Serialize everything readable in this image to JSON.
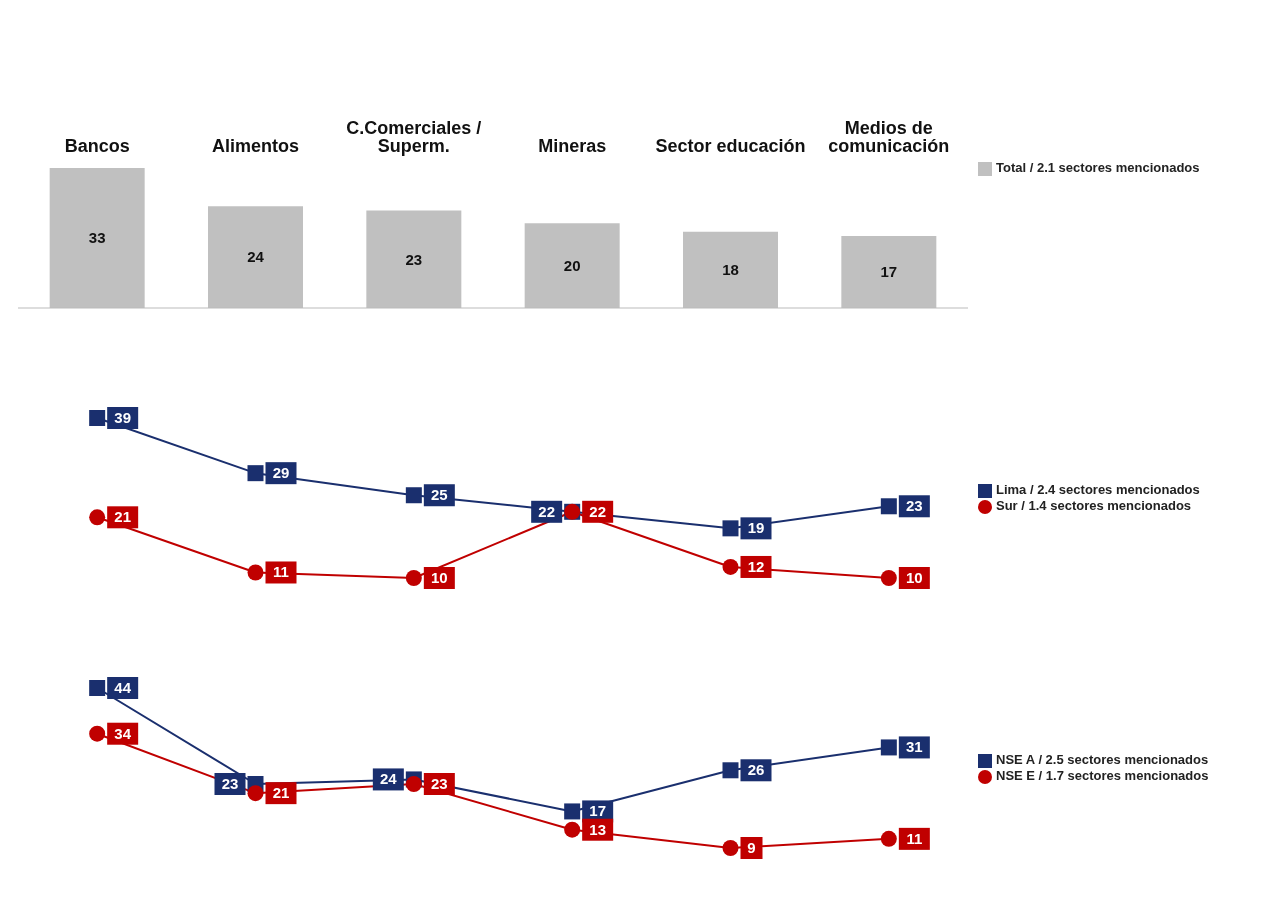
{
  "chart_data": [
    {
      "type": "bar",
      "categories": [
        "Bancos",
        "Alimentos",
        "C.Comerciales / Superm.",
        "Mineras",
        "Sector educación",
        "Medios de comunicación"
      ],
      "data_labels": true,
      "legend": "right",
      "series": [
        {
          "name": "Total / 2.1 sectores mencionados",
          "color": "#c0c0c0",
          "values": [
            33,
            24,
            23,
            20,
            18,
            17
          ]
        }
      ]
    },
    {
      "type": "line",
      "categories": [
        null,
        null,
        null,
        null,
        null,
        null
      ],
      "tick_labels": false,
      "data_labels": true,
      "legend": "right",
      "series": [
        {
          "name": "Lima / 2.4 sectores mencionados",
          "color": "#1a2f6e",
          "marker": "square",
          "values": [
            39,
            29,
            25,
            22,
            19,
            23
          ]
        },
        {
          "name": "Sur / 1.4 sectores mencionados",
          "color": "#c00000",
          "marker": "circle",
          "values": [
            21,
            11,
            10,
            22,
            12,
            10
          ]
        }
      ]
    },
    {
      "type": "line",
      "categories": [
        null,
        null,
        null,
        null,
        null,
        null
      ],
      "tick_labels": false,
      "data_labels": true,
      "legend": "right",
      "series": [
        {
          "name": "NSE A / 2.5 sectores mencionados",
          "color": "#1a2f6e",
          "marker": "square",
          "values": [
            44,
            23,
            24,
            17,
            26,
            31
          ]
        },
        {
          "name": "NSE E / 1.7 sectores mencionados",
          "color": "#c00000",
          "marker": "circle",
          "values": [
            34,
            21,
            23,
            13,
            9,
            11
          ]
        }
      ]
    }
  ]
}
